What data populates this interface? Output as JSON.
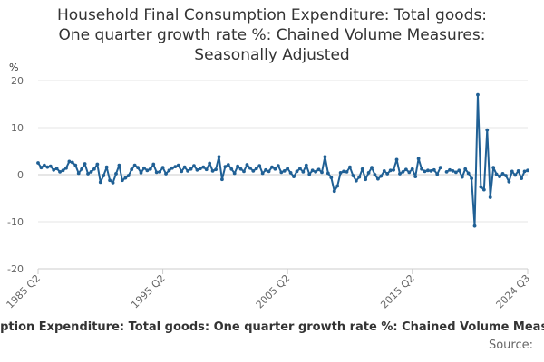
{
  "chart_data": {
    "type": "line",
    "title": "Household Final Consumption Expenditure: Total goods: One quarter growth rate %: Chained Volume Measures: Seasonally Adjusted",
    "title_lines": [
      "Household Final Consumption Expenditure: Total goods:",
      "One quarter growth rate %: Chained Volume Measures:",
      "Seasonally Adjusted"
    ],
    "ylabel": "%",
    "xlabel": "",
    "ylim": [
      -20,
      20
    ],
    "yticks": [
      "20",
      "10",
      "0",
      "-10",
      "-20"
    ],
    "ytick_values": [
      20,
      10,
      0,
      -10,
      -20
    ],
    "xticks": [
      {
        "label": "1985 Q2",
        "index": 0
      },
      {
        "label": "1995 Q2",
        "index": 40
      },
      {
        "label": "2005 Q2",
        "index": 80
      },
      {
        "label": "2015 Q2",
        "index": 120
      },
      {
        "label": "2024 Q3",
        "index": 157
      }
    ],
    "grid": true,
    "line_color": "#206095",
    "series": [
      {
        "name": "Household Final Consumption Expenditure: Total goods: One quarter growth rate %",
        "start": "1985 Q2",
        "end": "2024 Q3",
        "values": [
          2.5,
          1.5,
          2.0,
          1.6,
          1.8,
          1.0,
          1.3,
          0.6,
          0.9,
          1.4,
          2.8,
          2.6,
          2.0,
          0.3,
          1.2,
          2.3,
          0.2,
          0.6,
          1.2,
          2.2,
          -1.6,
          -0.2,
          1.6,
          -1.2,
          -1.7,
          0.2,
          2.0,
          -1.2,
          -0.7,
          -0.2,
          1.1,
          2.0,
          1.5,
          0.4,
          1.4,
          0.9,
          1.2,
          2.2,
          0.5,
          0.6,
          1.5,
          0.2,
          0.9,
          1.4,
          1.7,
          2.0,
          0.7,
          1.6,
          0.8,
          1.2,
          1.9,
          1.0,
          1.3,
          1.6,
          1.1,
          2.4,
          0.8,
          1.1,
          3.8,
          -1.0,
          1.7,
          2.1,
          1.2,
          0.3,
          1.8,
          1.2,
          0.7,
          2.1,
          1.4,
          0.8,
          1.3,
          1.9,
          0.3,
          1.0,
          0.7,
          1.6,
          1.2,
          1.9,
          0.5,
          0.8,
          1.3,
          0.4,
          -0.4,
          0.7,
          1.3,
          0.6,
          2.0,
          0.1,
          0.9,
          0.6,
          1.1,
          0.5,
          3.8,
          0.3,
          -0.6,
          -3.5,
          -2.4,
          0.4,
          0.7,
          0.6,
          1.6,
          -0.2,
          -1.3,
          -0.5,
          1.2,
          -1.0,
          0.4,
          1.5,
          0.0,
          -0.9,
          -0.3,
          0.8,
          0.2,
          0.9,
          1.0,
          3.2,
          0.2,
          0.6,
          1.1,
          0.5,
          1.2,
          -0.4,
          3.4,
          1.2,
          0.7,
          0.9,
          0.8,
          1.0,
          0.1,
          1.5,
          null,
          0.6,
          1.0,
          0.8,
          0.5,
          0.9,
          -0.5,
          1.2,
          0.3,
          -0.8,
          -10.9,
          17.0,
          -2.6,
          -3.2,
          9.5,
          -4.8,
          1.5,
          0.1,
          -0.4,
          0.2,
          -0.2,
          -1.5,
          0.7,
          -0.1,
          0.8,
          -0.8,
          0.7,
          0.9
        ]
      }
    ]
  },
  "footer": {
    "series_caption": "mption Expenditure: Total goods: One quarter growth rate %: Chained Volume Measu",
    "source_label": "Source:"
  }
}
